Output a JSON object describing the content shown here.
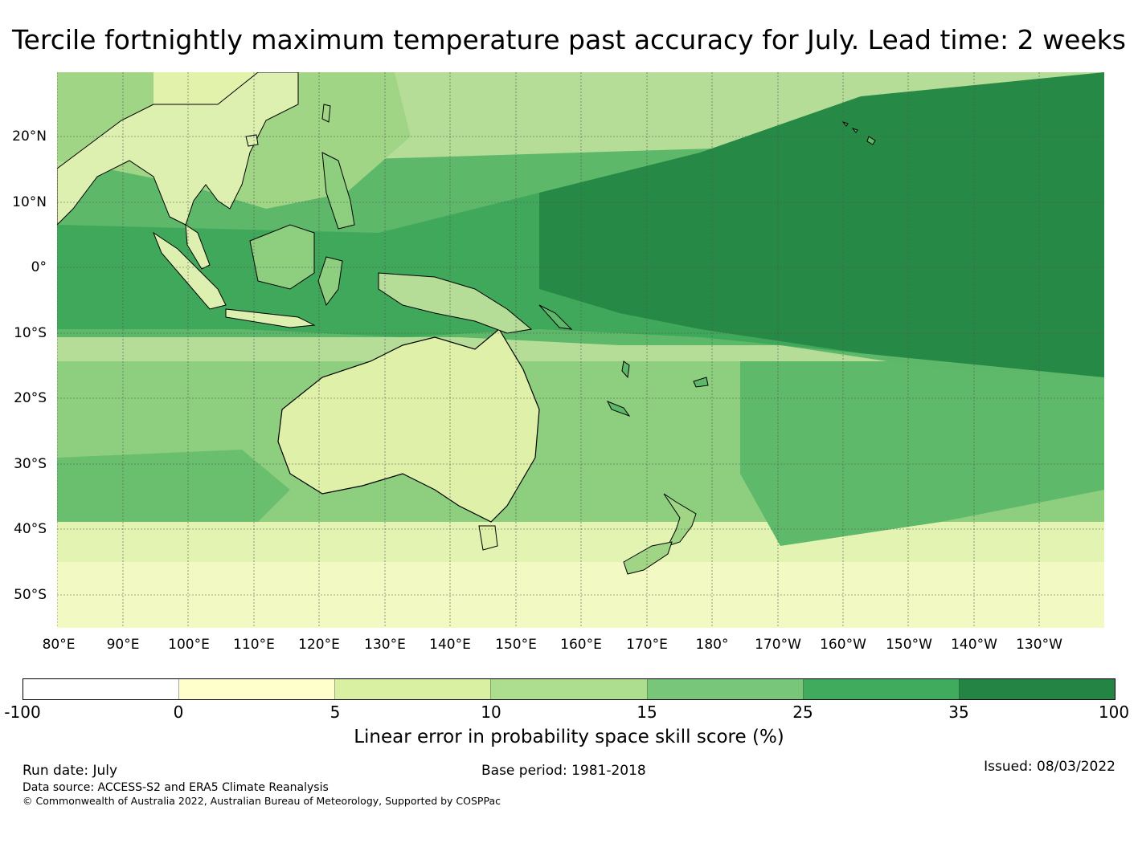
{
  "title": "Tercile fortnightly maximum temperature past accuracy for July. Lead time: 2 weeks",
  "map": {
    "lat_labels": [
      "20°N",
      "10°N",
      "0°",
      "10°S",
      "20°S",
      "30°S",
      "40°S",
      "50°S"
    ],
    "lon_labels": [
      "80°E",
      "90°E",
      "100°E",
      "110°E",
      "120°E",
      "130°E",
      "140°E",
      "150°E",
      "160°E",
      "170°E",
      "180°",
      "170°W",
      "160°W",
      "150°W",
      "140°W",
      "130°W"
    ],
    "coastline_color": "#000000",
    "gridline_color": "#555555"
  },
  "colorbar": {
    "title": "Linear error in probability space skill score (%)",
    "ticks": [
      "-100",
      "0",
      "5",
      "10",
      "15",
      "25",
      "35",
      "100"
    ],
    "colors": [
      "#ffffff",
      "#ffffcc",
      "#d9f0a3",
      "#addd8e",
      "#78c679",
      "#41ab5d",
      "#238443"
    ]
  },
  "footer": {
    "run_date": "Run date: July",
    "base_period": "Base period: 1981-2018",
    "issued": "Issued: 08/03/2022",
    "data_source": "Data source: ACCESS-S2 and ERA5 Climate Reanalysis",
    "copyright": "© Commonwealth of Australia 2022, Australian Bureau of Meteorology, Supported by COSPPac"
  }
}
